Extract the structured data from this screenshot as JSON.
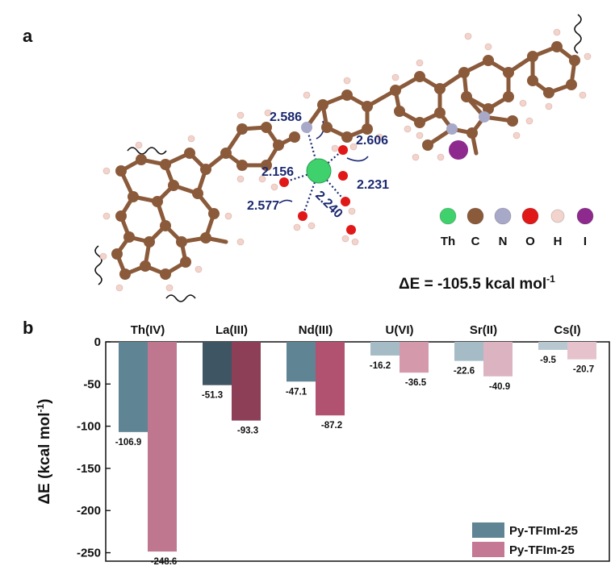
{
  "panel_a": {
    "label": "a",
    "distances": [
      "2.586",
      "2.606",
      "2.156",
      "2.231",
      "2.577",
      "2.240"
    ],
    "atom_legend": [
      {
        "symbol": "Th",
        "color": "#3fd16b"
      },
      {
        "symbol": "C",
        "color": "#8a5a3a"
      },
      {
        "symbol": "N",
        "color": "#a8a8c8"
      },
      {
        "symbol": "O",
        "color": "#e01818"
      },
      {
        "symbol": "H",
        "color": "#f2d4cc"
      },
      {
        "symbol": "I",
        "color": "#8e2a8e"
      }
    ],
    "energy_prefix": "ΔE = -105.5 kcal mol",
    "energy_sup": "-1"
  },
  "panel_b": {
    "label": "b"
  },
  "chart_data": {
    "type": "bar",
    "categories": [
      "Th(IV)",
      "La(III)",
      "Nd(III)",
      "U(VI)",
      "Sr(II)",
      "Cs(I)"
    ],
    "series": [
      {
        "name": "Py-TFImI-25",
        "values": [
          -106.9,
          -51.3,
          -47.1,
          -16.2,
          -22.6,
          -9.5
        ],
        "labels": [
          "-106.9",
          "-51.3",
          "-47.1",
          "-16.2",
          "-22.6",
          "-9.5"
        ],
        "colors": [
          "#5f8493",
          "#3e5563",
          "#5f8493",
          "#a5bcc7",
          "#a5bcc7",
          "#b8c8d0"
        ]
      },
      {
        "name": "Py-TFIm-25",
        "values": [
          -248.6,
          -93.3,
          -87.2,
          -36.5,
          -40.9,
          -20.7
        ],
        "labels": [
          "-248.6",
          "-93.3",
          "-87.2",
          "-36.5",
          "-40.9",
          "-20.7"
        ],
        "colors": [
          "#bf7790",
          "#8d3f58",
          "#b15270",
          "#d49aac",
          "#dcb3c0",
          "#e6c3cc"
        ]
      }
    ],
    "legend_colors": [
      "#5f8493",
      "#c47893"
    ],
    "ylabel": "ΔE (kcal mol",
    "ylabel_sup": "-1",
    "ylabel_close": ")",
    "ylim": [
      -260,
      0
    ],
    "yticks": [
      0,
      -50,
      -100,
      -150,
      -200,
      -250
    ],
    "ytick_labels": [
      "0",
      "-50",
      "-100",
      "-150",
      "-200",
      "-250"
    ],
    "categories_position": "top",
    "legend_position": "bottom-right"
  }
}
